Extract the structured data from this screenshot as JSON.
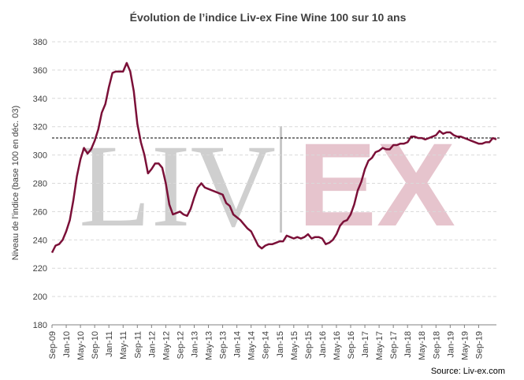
{
  "chart_data": {
    "type": "line",
    "title": "Évolution de l’indice Liv-ex Fine Wine 100 sur 10 ans",
    "ylabel": "Niveau de l’indice (base 100 en déc. 03)",
    "xlabel": "",
    "ylim": [
      180,
      380
    ],
    "yticks": [
      180,
      200,
      220,
      240,
      260,
      280,
      300,
      320,
      340,
      360,
      380
    ],
    "grid": "horizontal-dashed",
    "legend": "none",
    "source": "Source: Liv-ex.com",
    "watermark": {
      "left": "LIV",
      "right": "EX"
    },
    "reference_line": {
      "value": 312,
      "style": "dashed",
      "color": "#000000"
    },
    "colors": {
      "line": "#7b1038",
      "watermark_left": "#cfcfcf",
      "watermark_right": "#e6c4cd",
      "grid": "#d9d9d9"
    },
    "xticks": [
      "Sep-09",
      "Jan-10",
      "May-10",
      "Sep-10",
      "Jan-11",
      "May-11",
      "Sep-11",
      "Jan-12",
      "May-12",
      "Sep-12",
      "Jan-13",
      "May-13",
      "Sep-13",
      "Jan-14",
      "May-14",
      "Sep-14",
      "Jan-15",
      "May-15",
      "Sep-15",
      "Jan-16",
      "May-16",
      "Sep-16",
      "Jan-17",
      "May-17",
      "Sep-17",
      "Jan-18",
      "May-18",
      "Sep-18",
      "Jan-19",
      "May-19",
      "Sep-19"
    ],
    "series": [
      {
        "values": [
          231,
          236,
          237,
          240,
          246,
          254,
          268,
          285,
          297,
          305,
          301,
          304,
          310,
          318,
          330,
          336,
          348,
          358,
          359,
          359,
          359,
          365,
          359,
          345,
          322,
          309,
          300,
          287,
          290,
          294,
          294,
          291,
          280,
          265,
          258,
          259,
          260,
          258,
          257,
          262,
          270,
          277,
          280,
          277,
          276,
          275,
          274,
          273,
          272,
          266,
          264,
          258,
          256,
          254,
          251,
          248,
          246,
          241,
          236,
          234,
          236,
          237,
          237,
          238,
          239,
          239,
          243,
          242,
          241,
          242,
          241,
          242,
          244,
          241,
          242,
          242,
          241,
          237,
          238,
          240,
          244,
          250,
          253,
          254,
          258,
          265,
          275,
          281,
          290,
          296,
          298,
          302,
          303,
          305,
          304,
          304,
          307,
          307,
          308,
          308,
          309,
          313,
          313,
          312,
          312,
          311,
          312,
          313,
          314,
          317,
          315,
          316,
          316,
          314,
          313,
          313,
          312,
          311,
          310,
          309,
          308,
          308,
          309,
          309,
          312,
          311
        ]
      }
    ]
  }
}
